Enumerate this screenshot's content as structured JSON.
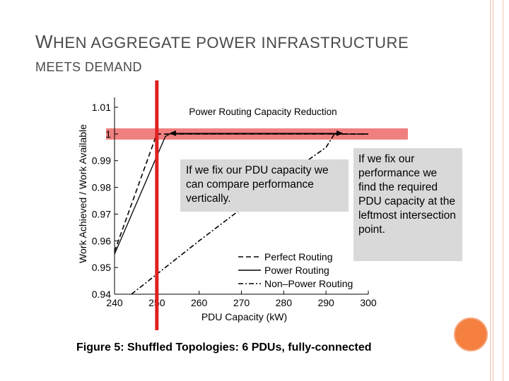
{
  "slide": {
    "title_line1_cap": "W",
    "title_line1_rest": "HEN AGGREGATE POWER INFRASTRUCTURE",
    "title_line2": "MEETS DEMAND",
    "caption": "Figure 5: Shuffled Topologies: 6 PDUs, fully-connected",
    "callout_left": "If we fix our PDU capacity we can compare performance vertically.",
    "callout_right": "If we fix our performance we find the required PDU capacity at the leftmost intersection point.",
    "colors": {
      "accent_red": "#e02020",
      "highlight_band": "#f08080",
      "callout_bg": "#d9d9d9",
      "circle": "#f47f3f",
      "deco_lines": "#f2c2ad"
    }
  },
  "chart_data": {
    "type": "line",
    "annotation": "Power Routing Capacity Reduction",
    "xlabel": "PDU Capacity (kW)",
    "ylabel": "Work Achieved / Work Available",
    "xlim": [
      240,
      300
    ],
    "ylim": [
      0.94,
      1.01
    ],
    "x_ticks": [
      "240",
      "250",
      "260",
      "270",
      "280",
      "290",
      "300"
    ],
    "y_ticks": [
      "0.94",
      "0.95",
      "0.96",
      "0.97",
      "0.98",
      "0.99",
      "1",
      "1.01"
    ],
    "series": [
      {
        "name": "Perfect Routing",
        "style": "dashed",
        "points": [
          [
            240,
            0.956
          ],
          [
            250,
            1.0
          ],
          [
            300,
            1.0
          ]
        ]
      },
      {
        "name": "Power Routing",
        "style": "solid",
        "points": [
          [
            240,
            0.955
          ],
          [
            252,
            0.999
          ],
          [
            253,
            1.0
          ],
          [
            300,
            1.0
          ]
        ]
      },
      {
        "name": "Non–Power Routing",
        "style": "dashdot",
        "points": [
          [
            244,
            0.94
          ],
          [
            260,
            0.96
          ],
          [
            275,
            0.978
          ],
          [
            290,
            0.995
          ],
          [
            292,
            1.0
          ],
          [
            300,
            1.0
          ]
        ]
      }
    ],
    "highlight": {
      "capacity_x": 250,
      "performance_y": 1.0
    }
  }
}
